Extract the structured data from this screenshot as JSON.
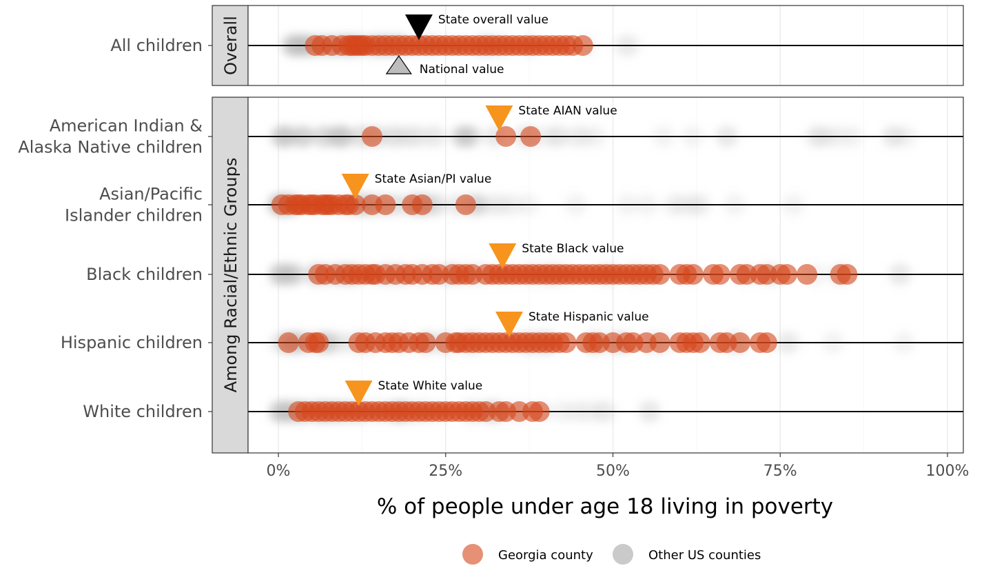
{
  "chart_data": {
    "type": "scatter",
    "xlabel": "% of people under age 18 living in poverty",
    "ylabel": "",
    "xlim": [
      -0.04,
      1.02
    ],
    "x_ticks": [
      "0%",
      "25%",
      "50%",
      "75%",
      "100%"
    ],
    "x_tick_values": [
      0,
      0.25,
      0.5,
      0.75,
      1.0
    ],
    "grid": true,
    "legend_position": "bottom",
    "legend": [
      {
        "name": "Georgia county",
        "color": "#D6461A"
      },
      {
        "name": "Other US counties",
        "color": "#BDBDBD"
      }
    ],
    "colors": {
      "georgia": "#D6461A",
      "other": "#BDBDBD",
      "state_marker": "#F7941D",
      "overall_marker": "#000000",
      "national_marker": "#BDBDBD"
    },
    "panels": [
      {
        "strip": "Overall",
        "rows": [
          {
            "label": "All children",
            "georgia_range": [
              0.055,
              0.455
            ],
            "georgia_values": [
              0.055,
              0.065,
              0.08,
              0.095,
              0.105,
              0.11,
              0.115,
              0.12,
              0.125,
              0.13,
              0.14,
              0.15,
              0.16,
              0.17,
              0.18,
              0.19,
              0.2,
              0.21,
              0.22,
              0.23,
              0.24,
              0.25,
              0.26,
              0.27,
              0.28,
              0.29,
              0.3,
              0.31,
              0.32,
              0.33,
              0.34,
              0.35,
              0.36,
              0.37,
              0.38,
              0.39,
              0.4,
              0.41,
              0.42,
              0.43,
              0.44,
              0.455
            ],
            "other_range": [
              0.02,
              0.58
            ],
            "markers": [
              {
                "kind": "overall",
                "value": 0.21,
                "label": "State overall value"
              },
              {
                "kind": "national",
                "value": 0.18,
                "label": "National value"
              }
            ]
          }
        ]
      },
      {
        "strip": "Among Racial/Ethnic Groups",
        "rows": [
          {
            "label": "American Indian & Alaska Native children",
            "label_lines": [
              "American Indian &",
              "Alaska Native children"
            ],
            "georgia_values": [
              0.14,
              0.34,
              0.377
            ],
            "other_range": [
              0.0,
              0.98
            ],
            "markers": [
              {
                "kind": "state",
                "value": 0.33,
                "label": "State AIAN value"
              }
            ]
          },
          {
            "label": "Asian/Pacific Islander children",
            "label_lines": [
              "Asian/Pacific",
              "Islander children"
            ],
            "georgia_values": [
              0.005,
              0.015,
              0.025,
              0.03,
              0.035,
              0.045,
              0.05,
              0.055,
              0.065,
              0.07,
              0.075,
              0.08,
              0.09,
              0.1,
              0.105,
              0.115,
              0.14,
              0.16,
              0.2,
              0.215,
              0.28
            ],
            "other_range": [
              0.0,
              0.82
            ],
            "markers": [
              {
                "kind": "state",
                "value": 0.115,
                "label": "State Asian/PI value"
              }
            ]
          },
          {
            "label": "Black children",
            "georgia_values": [
              0.06,
              0.07,
              0.085,
              0.1,
              0.11,
              0.12,
              0.13,
              0.14,
              0.145,
              0.16,
              0.175,
              0.19,
              0.2,
              0.215,
              0.23,
              0.24,
              0.26,
              0.27,
              0.28,
              0.29,
              0.31,
              0.32,
              0.33,
              0.34,
              0.35,
              0.36,
              0.37,
              0.38,
              0.39,
              0.4,
              0.41,
              0.42,
              0.43,
              0.44,
              0.45,
              0.46,
              0.47,
              0.48,
              0.49,
              0.5,
              0.51,
              0.52,
              0.53,
              0.54,
              0.55,
              0.56,
              0.57,
              0.6,
              0.61,
              0.62,
              0.65,
              0.66,
              0.69,
              0.7,
              0.72,
              0.73,
              0.75,
              0.76,
              0.79,
              0.84,
              0.85
            ],
            "other_range": [
              0.0,
              0.98
            ],
            "markers": [
              {
                "kind": "state",
                "value": 0.335,
                "label": "State Black value"
              }
            ]
          },
          {
            "label": "Hispanic children",
            "georgia_values": [
              0.015,
              0.045,
              0.055,
              0.06,
              0.12,
              0.13,
              0.145,
              0.16,
              0.17,
              0.18,
              0.195,
              0.21,
              0.22,
              0.25,
              0.265,
              0.27,
              0.28,
              0.29,
              0.3,
              0.31,
              0.32,
              0.33,
              0.34,
              0.35,
              0.36,
              0.37,
              0.38,
              0.39,
              0.4,
              0.41,
              0.42,
              0.43,
              0.46,
              0.47,
              0.48,
              0.5,
              0.52,
              0.53,
              0.55,
              0.57,
              0.6,
              0.61,
              0.62,
              0.63,
              0.66,
              0.67,
              0.69,
              0.72,
              0.73
            ],
            "other_range": [
              0.0,
              0.97
            ],
            "markers": [
              {
                "kind": "state",
                "value": 0.345,
                "label": "State Hispanic value"
              }
            ]
          },
          {
            "label": "White children",
            "georgia_values": [
              0.03,
              0.04,
              0.05,
              0.06,
              0.07,
              0.08,
              0.09,
              0.1,
              0.11,
              0.12,
              0.13,
              0.14,
              0.15,
              0.16,
              0.17,
              0.18,
              0.19,
              0.2,
              0.21,
              0.22,
              0.23,
              0.24,
              0.25,
              0.26,
              0.27,
              0.28,
              0.29,
              0.3,
              0.31,
              0.33,
              0.34,
              0.36,
              0.38,
              0.39
            ],
            "other_range": [
              0.0,
              0.6
            ],
            "markers": [
              {
                "kind": "state",
                "value": 0.12,
                "label": "State White value"
              }
            ]
          }
        ]
      }
    ]
  }
}
